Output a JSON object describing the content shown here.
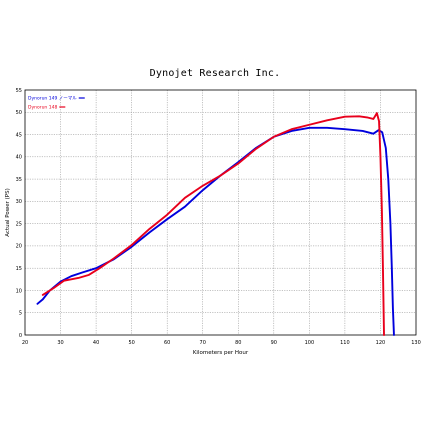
{
  "chart_data": {
    "type": "line",
    "title": "Dynojet  Research  Inc.",
    "xlabel": "Kilometers per Hour",
    "ylabel": "Actual Power (PS)",
    "xlim": [
      20,
      130
    ],
    "ylim": [
      0,
      55
    ],
    "x_ticks": [
      20,
      30,
      40,
      50,
      60,
      70,
      80,
      90,
      100,
      110,
      120,
      130
    ],
    "y_ticks": [
      0,
      5,
      10,
      15,
      20,
      25,
      30,
      35,
      40,
      45,
      50,
      55
    ],
    "grid": true,
    "legend_position": "top-left",
    "series": [
      {
        "name": "Dynorun 149  ノーマル",
        "color": "#0000dd",
        "x": [
          23.5,
          25,
          27,
          30,
          33,
          36,
          40,
          45,
          50,
          55,
          60,
          65,
          70,
          75,
          80,
          85,
          90,
          95,
          100,
          105,
          110,
          115,
          118,
          119.5,
          120.5,
          121.5,
          122.2,
          122.8,
          123.2,
          123.5,
          123.7,
          123.8
        ],
        "y": [
          7,
          8,
          10,
          12,
          13.2,
          14,
          15,
          17,
          19.8,
          23,
          26,
          28.8,
          32.5,
          35.8,
          38.8,
          42,
          44.5,
          45.8,
          46.5,
          46.5,
          46.2,
          45.8,
          45.2,
          46,
          45.5,
          42,
          35,
          25,
          15,
          6,
          2,
          0
        ]
      },
      {
        "name": "Dynorun 148  ",
        "color": "#e8001c",
        "x": [
          25,
          28,
          31,
          35,
          38,
          41,
          45,
          50,
          55,
          60,
          65,
          70,
          75,
          80,
          85,
          90,
          95,
          100,
          105,
          110,
          114,
          116.5,
          118,
          119,
          119.6,
          120,
          120.4,
          120.7,
          120.9,
          121
        ],
        "y": [
          9,
          10.5,
          12.2,
          12.8,
          13.5,
          15,
          17.2,
          20.2,
          23.8,
          27,
          30.8,
          33.5,
          35.8,
          38.5,
          41.8,
          44.5,
          46.2,
          47.2,
          48.2,
          49,
          49.1,
          48.8,
          48.5,
          49.8,
          48,
          40,
          28,
          15,
          5,
          0
        ]
      }
    ]
  }
}
